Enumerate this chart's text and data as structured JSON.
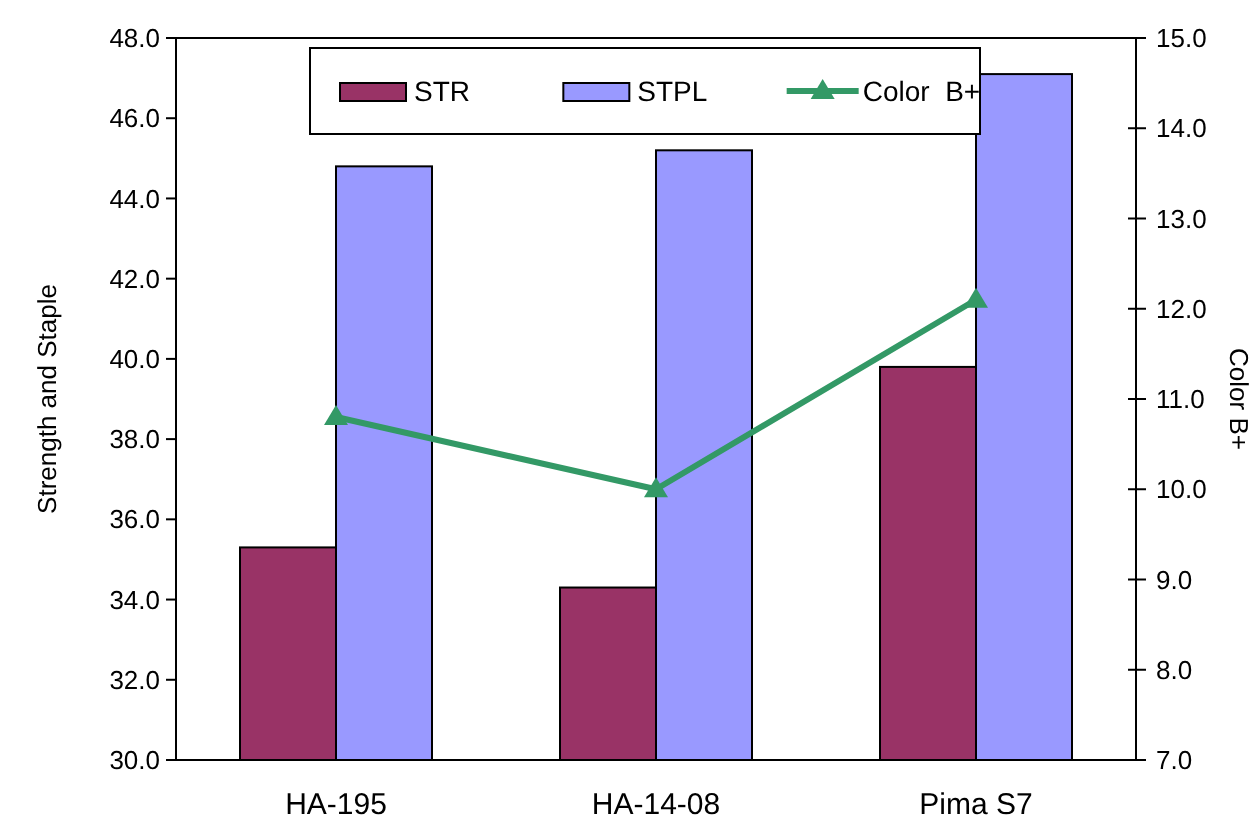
{
  "chart_data": {
    "type": "bar",
    "ylabel": "Strength  and  Staple",
    "y2label": "Color B+",
    "categories": [
      "HA-195",
      "HA-14-08",
      "Pima S7"
    ],
    "series": [
      {
        "name": "STR",
        "color": "#993366",
        "values": [
          35.3,
          34.3,
          39.8
        ]
      },
      {
        "name": "STPL",
        "color": "#9999ff",
        "values": [
          44.8,
          45.2,
          47.1
        ]
      },
      {
        "name": "Color  B+",
        "type": "line",
        "axis": "y2",
        "color": "#339966",
        "marker": "triangle",
        "values": [
          10.8,
          10.0,
          12.1
        ]
      }
    ],
    "ylim": [
      30,
      48
    ],
    "yticks": [
      {
        "value": 30,
        "label": "30.0"
      },
      {
        "value": 32,
        "label": "32.0"
      },
      {
        "value": 34,
        "label": "34.0"
      },
      {
        "value": 36,
        "label": "36.0"
      },
      {
        "value": 38,
        "label": "38.0"
      },
      {
        "value": 40,
        "label": "40.0"
      },
      {
        "value": 42,
        "label": "42.0"
      },
      {
        "value": 44,
        "label": "44.0"
      },
      {
        "value": 46,
        "label": "46.0"
      },
      {
        "value": 48,
        "label": "48.0"
      }
    ],
    "y2lim": [
      7,
      15
    ],
    "y2ticks": [
      {
        "value": 7,
        "label": "7.0"
      },
      {
        "value": 8,
        "label": "8.0"
      },
      {
        "value": 9,
        "label": "9.0"
      },
      {
        "value": 10,
        "label": "10.0"
      },
      {
        "value": 11,
        "label": "11.0"
      },
      {
        "value": 12,
        "label": "12.0"
      },
      {
        "value": 13,
        "label": "13.0"
      },
      {
        "value": 14,
        "label": "14.0"
      },
      {
        "value": 15,
        "label": "15.0"
      }
    ],
    "legend": "top",
    "grid": false
  }
}
